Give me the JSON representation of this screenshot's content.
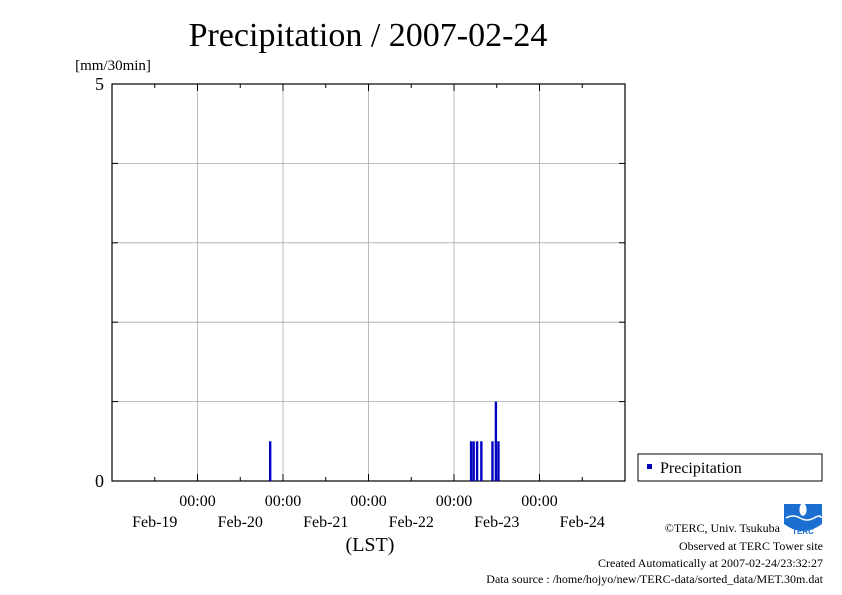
{
  "title": "Precipitation / 2007-02-24",
  "chart_data": {
    "type": "bar",
    "title": "Precipitation / 2007-02-24",
    "ylabel": "[mm/30min]",
    "xlabel": "(LST)",
    "ylim": [
      0,
      5
    ],
    "yticks": [
      "0",
      "5"
    ],
    "x_range_days": [
      -0.5,
      5.5
    ],
    "x_time_labels": [
      {
        "day": 0.5,
        "time": "00:00"
      },
      {
        "day": 1.5,
        "time": "00:00"
      },
      {
        "day": 2.5,
        "time": "00:00"
      },
      {
        "day": 3.5,
        "time": "00:00"
      },
      {
        "day": 4.5,
        "time": "00:00"
      }
    ],
    "x_date_labels": [
      {
        "day": 0,
        "date": "Feb-19"
      },
      {
        "day": 1,
        "date": "Feb-20"
      },
      {
        "day": 2,
        "date": "Feb-21"
      },
      {
        "day": 3,
        "date": "Feb-22"
      },
      {
        "day": 4,
        "date": "Feb-23"
      },
      {
        "day": 5,
        "date": "Feb-24"
      }
    ],
    "grid": true,
    "legend_position": "right",
    "series": [
      {
        "name": "Precipitation",
        "color": "#0000c0",
        "points": [
          {
            "day": 1.35,
            "value": 0.5
          },
          {
            "day": 3.7,
            "value": 0.5
          },
          {
            "day": 3.73,
            "value": 0.5
          },
          {
            "day": 3.77,
            "value": 0.5
          },
          {
            "day": 3.82,
            "value": 0.5
          },
          {
            "day": 3.95,
            "value": 0.5
          },
          {
            "day": 3.99,
            "value": 1.0
          },
          {
            "day": 4.02,
            "value": 0.5
          }
        ]
      }
    ]
  },
  "legend": {
    "label": "Precipitation"
  },
  "credits": [
    "©TERC, Univ. Tsukuba",
    "Observed at TERC Tower site",
    "Created Automatically at 2007-02-24/23:32:27",
    "Data source : /home/hojyo/new/TERC-data/sorted_data/MET.30m.dat"
  ],
  "logo": {
    "text": "TERC",
    "color": "#1a6fd0"
  }
}
